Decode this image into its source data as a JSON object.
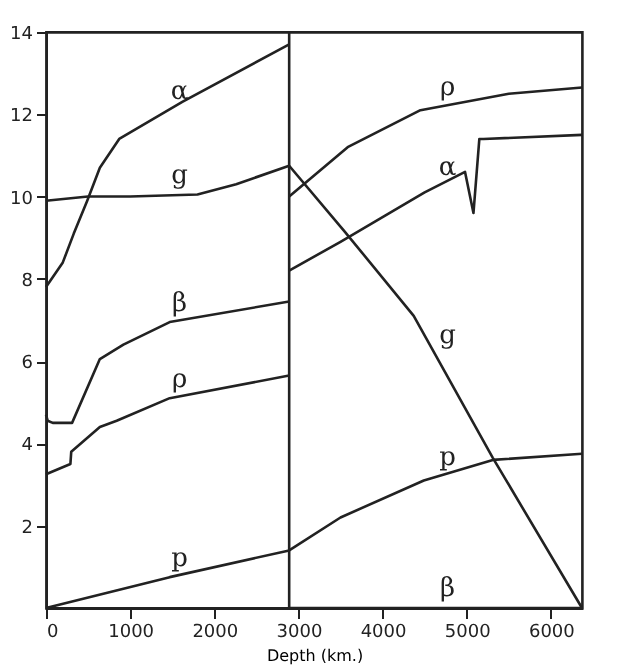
{
  "chart_data": {
    "type": "line",
    "xlabel": "Depth (km.)",
    "xlim": [
      0,
      6370
    ],
    "ylim": [
      0,
      14
    ],
    "xticks": [
      0,
      1000,
      2000,
      3000,
      4000,
      5000,
      6000
    ],
    "yticks": [
      2,
      4,
      6,
      8,
      10,
      12,
      14
    ],
    "grid": false,
    "legend": false,
    "series": [
      {
        "name": "α",
        "color": "#222222",
        "x": [
          0,
          200,
          330,
          490,
          640,
          870,
          1620,
          2890
        ],
        "values": [
          7.8,
          8.4,
          9.1,
          9.9,
          10.7,
          11.4,
          12.3,
          13.7
        ]
      },
      {
        "name": "α",
        "color": "#222222",
        "x": [
          2890,
          3500,
          4000,
          4500,
          4980,
          5080,
          5150,
          5200,
          6370
        ],
        "values": [
          8.2,
          8.9,
          9.5,
          10.1,
          10.6,
          9.6,
          11.4,
          11.4,
          11.5
        ]
      },
      {
        "name": "g",
        "color": "#222222",
        "x": [
          0,
          500,
          1000,
          1800,
          2260,
          2890
        ],
        "values": [
          9.9,
          10.0,
          10.0,
          10.05,
          10.3,
          10.75
        ]
      },
      {
        "name": "g",
        "color": "#222222",
        "x": [
          2890,
          3550,
          4370,
          5310,
          6370
        ],
        "values": [
          10.75,
          9.15,
          7.1,
          3.65,
          0
        ]
      },
      {
        "name": "β",
        "color": "#222222",
        "x": [
          0,
          20,
          80,
          310,
          640,
          920,
          1470,
          2890
        ],
        "values": [
          4.7,
          4.55,
          4.5,
          4.5,
          6.05,
          6.4,
          6.95,
          7.45
        ]
      },
      {
        "name": "β",
        "color": "#222222",
        "x": [
          2890,
          6370
        ],
        "values": [
          0,
          0
        ]
      },
      {
        "name": "ρ",
        "color": "#222222",
        "x": [
          0,
          290,
          300,
          640,
          840,
          1470,
          2890
        ],
        "values": [
          3.25,
          3.5,
          3.8,
          4.4,
          4.55,
          5.1,
          5.65
        ]
      },
      {
        "name": "ρ",
        "color": "#222222",
        "x": [
          2890,
          3585,
          4450,
          5500,
          6370
        ],
        "values": [
          10.0,
          11.2,
          12.1,
          12.5,
          12.65
        ]
      },
      {
        "name": "p",
        "color": "#222222",
        "x": [
          0,
          1470,
          2890,
          3500,
          4490,
          5310,
          6370
        ],
        "values": [
          0,
          0.75,
          1.4,
          2.2,
          3.1,
          3.6,
          3.75
        ]
      }
    ],
    "ref_lines": [
      {
        "axis": "x",
        "value": 2890,
        "color": "#222222"
      }
    ]
  }
}
